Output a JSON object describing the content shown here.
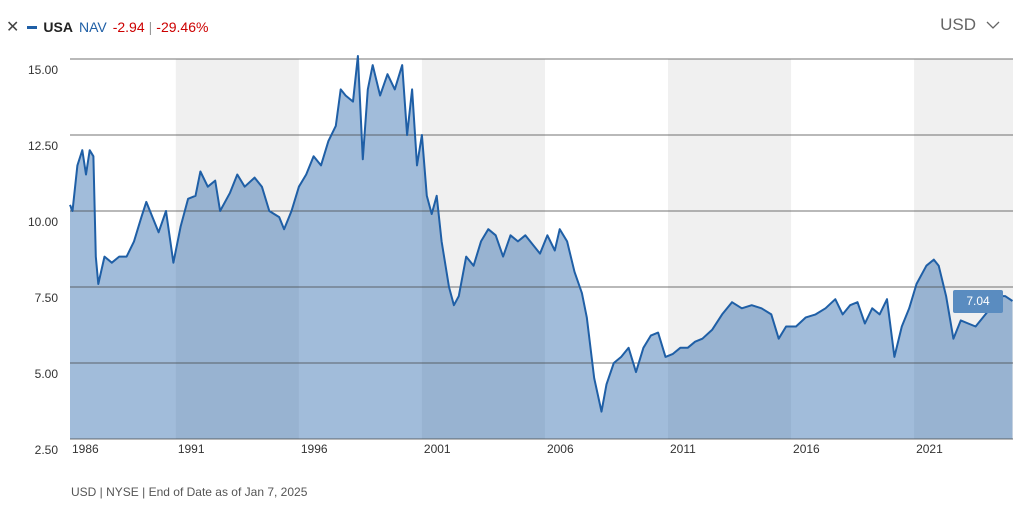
{
  "chart_data": {
    "type": "area",
    "header": {
      "measure": "NAV",
      "change": "-2.94",
      "change_pct": "-29.46%",
      "currency": "USD"
    },
    "footnote": "USD | NYSE | End of Date as of Jan 7, 2025",
    "xlim": [
      1986.7,
      2025.02
    ],
    "xticks": [
      {
        "value": 1986.7,
        "label": "1986"
      },
      1991,
      1996,
      2001,
      2006,
      2011,
      2016,
      2021
    ],
    "ylim": [
      2.5,
      15.0
    ],
    "yticks": [
      {
        "value": 2.5,
        "label": "2.50"
      },
      {
        "value": 5,
        "label": "5.00"
      },
      {
        "value": 7.5,
        "label": "7.50"
      },
      {
        "value": 10,
        "label": "10.00"
      },
      {
        "value": 12.5,
        "label": "12.50"
      },
      {
        "value": 15,
        "label": "15.00"
      }
    ],
    "grid": true,
    "x": [
      1986.7,
      1986.8,
      1987.0,
      1987.2,
      1987.35,
      1987.5,
      1987.65,
      1987.75,
      1987.85,
      1988.1,
      1988.4,
      1988.7,
      1989.0,
      1989.3,
      1989.6,
      1989.8,
      1990.0,
      1990.3,
      1990.6,
      1990.9,
      1991.2,
      1991.5,
      1991.8,
      1992.0,
      1992.3,
      1992.6,
      1992.8,
      1993.2,
      1993.5,
      1993.8,
      1994.2,
      1994.5,
      1994.8,
      1995.2,
      1995.4,
      1995.7,
      1996.0,
      1996.3,
      1996.6,
      1996.9,
      1997.2,
      1997.5,
      1997.7,
      1997.9,
      1998.2,
      1998.4,
      1998.6,
      1998.8,
      1999.0,
      1999.3,
      1999.6,
      1999.9,
      2000.2,
      2000.4,
      2000.6,
      2000.8,
      2001.0,
      2001.2,
      2001.4,
      2001.6,
      2001.8,
      2002.1,
      2002.3,
      2002.5,
      2002.8,
      2003.1,
      2003.4,
      2003.7,
      2004.0,
      2004.3,
      2004.6,
      2004.9,
      2005.2,
      2005.5,
      2005.8,
      2006.1,
      2006.4,
      2006.6,
      2006.9,
      2007.2,
      2007.5,
      2007.7,
      2008.0,
      2008.3,
      2008.5,
      2008.8,
      2009.1,
      2009.4,
      2009.7,
      2010.0,
      2010.3,
      2010.6,
      2010.9,
      2011.2,
      2011.5,
      2011.8,
      2012.1,
      2012.4,
      2012.8,
      2013.2,
      2013.6,
      2014.0,
      2014.4,
      2014.8,
      2015.2,
      2015.5,
      2015.8,
      2016.2,
      2016.6,
      2017.0,
      2017.4,
      2017.8,
      2018.1,
      2018.4,
      2018.7,
      2019.0,
      2019.3,
      2019.6,
      2019.9,
      2020.2,
      2020.5,
      2020.8,
      2021.1,
      2021.5,
      2021.8,
      2022.0,
      2022.3,
      2022.6,
      2022.9,
      2023.2,
      2023.5,
      2023.8,
      2024.1,
      2024.4,
      2024.7,
      2025.0
    ],
    "series": [
      {
        "name": "USA",
        "color": "#1f5fa6",
        "values": [
          10.2,
          10.0,
          11.5,
          12.0,
          11.2,
          12.0,
          11.8,
          8.5,
          7.6,
          8.5,
          8.3,
          8.5,
          8.5,
          9.0,
          9.8,
          10.3,
          9.9,
          9.3,
          10.0,
          8.3,
          9.5,
          10.4,
          10.5,
          11.3,
          10.8,
          11.0,
          10.0,
          10.6,
          11.2,
          10.8,
          11.1,
          10.8,
          10.0,
          9.8,
          9.4,
          10.0,
          10.8,
          11.2,
          11.8,
          11.5,
          12.3,
          12.8,
          14.0,
          13.8,
          13.6,
          15.1,
          11.7,
          14.0,
          14.8,
          13.8,
          14.5,
          14.0,
          14.8,
          12.5,
          14.0,
          11.5,
          12.5,
          10.5,
          9.9,
          10.5,
          9.0,
          7.5,
          6.9,
          7.2,
          8.5,
          8.2,
          9.0,
          9.4,
          9.2,
          8.5,
          9.2,
          9.0,
          9.2,
          8.9,
          8.6,
          9.2,
          8.7,
          9.4,
          9.0,
          8.0,
          7.3,
          6.5,
          4.5,
          3.4,
          4.3,
          5.0,
          5.2,
          5.5,
          4.7,
          5.5,
          5.9,
          6.0,
          5.2,
          5.3,
          5.5,
          5.5,
          5.7,
          5.8,
          6.1,
          6.6,
          7.0,
          6.8,
          6.9,
          6.8,
          6.6,
          5.8,
          6.2,
          6.2,
          6.5,
          6.6,
          6.8,
          7.1,
          6.6,
          6.9,
          7.0,
          6.3,
          6.8,
          6.6,
          7.1,
          5.2,
          6.2,
          6.8,
          7.6,
          8.2,
          8.4,
          8.2,
          7.2,
          5.8,
          6.4,
          6.3,
          6.2,
          6.5,
          6.8,
          7.2,
          7.2,
          7.04
        ]
      }
    ]
  }
}
